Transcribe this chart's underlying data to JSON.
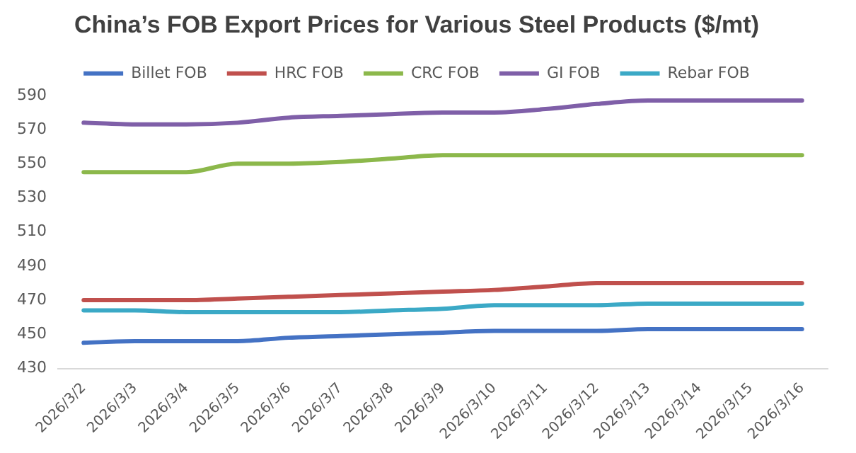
{
  "chart_data": {
    "type": "line",
    "title": "China’s FOB Export Prices for Various Steel Products ($/mt)",
    "categories": [
      "2026/3/2",
      "2026/3/3",
      "2026/3/4",
      "2026/3/5",
      "2026/3/6",
      "2026/3/7",
      "2026/3/8",
      "2026/3/9",
      "2026/3/10",
      "2026/3/11",
      "2026/3/12",
      "2026/3/13",
      "2026/3/14",
      "2026/3/15",
      "2026/3/16"
    ],
    "series": [
      {
        "name": "Billet FOB",
        "color": "#4472c4",
        "values": [
          445,
          446,
          446,
          446,
          448,
          449,
          450,
          451,
          452,
          452,
          452,
          453,
          453,
          453,
          453
        ]
      },
      {
        "name": "HRC FOB",
        "color": "#c0504d",
        "values": [
          470,
          470,
          470,
          471,
          472,
          473,
          474,
          475,
          476,
          478,
          480,
          480,
          480,
          480,
          480
        ]
      },
      {
        "name": "CRC FOB",
        "color": "#8cb84b",
        "values": [
          545,
          545,
          545,
          550,
          550,
          551,
          553,
          555,
          555,
          555,
          555,
          555,
          555,
          555,
          555
        ]
      },
      {
        "name": "GI FOB",
        "color": "#7f5fa8",
        "values": [
          574,
          573,
          573,
          574,
          577,
          578,
          579,
          580,
          580,
          582,
          585,
          587,
          587,
          587,
          587
        ]
      },
      {
        "name": "Rebar FOB",
        "color": "#3ba9c6",
        "values": [
          464,
          464,
          463,
          463,
          463,
          463,
          464,
          465,
          467,
          467,
          467,
          468,
          468,
          468,
          468
        ]
      }
    ],
    "ylim": [
      430,
      590
    ],
    "yticks": [
      430,
      450,
      470,
      490,
      510,
      530,
      550,
      570,
      590
    ],
    "grid": false,
    "legend": "top",
    "marker": "none",
    "line_style": "solid"
  }
}
